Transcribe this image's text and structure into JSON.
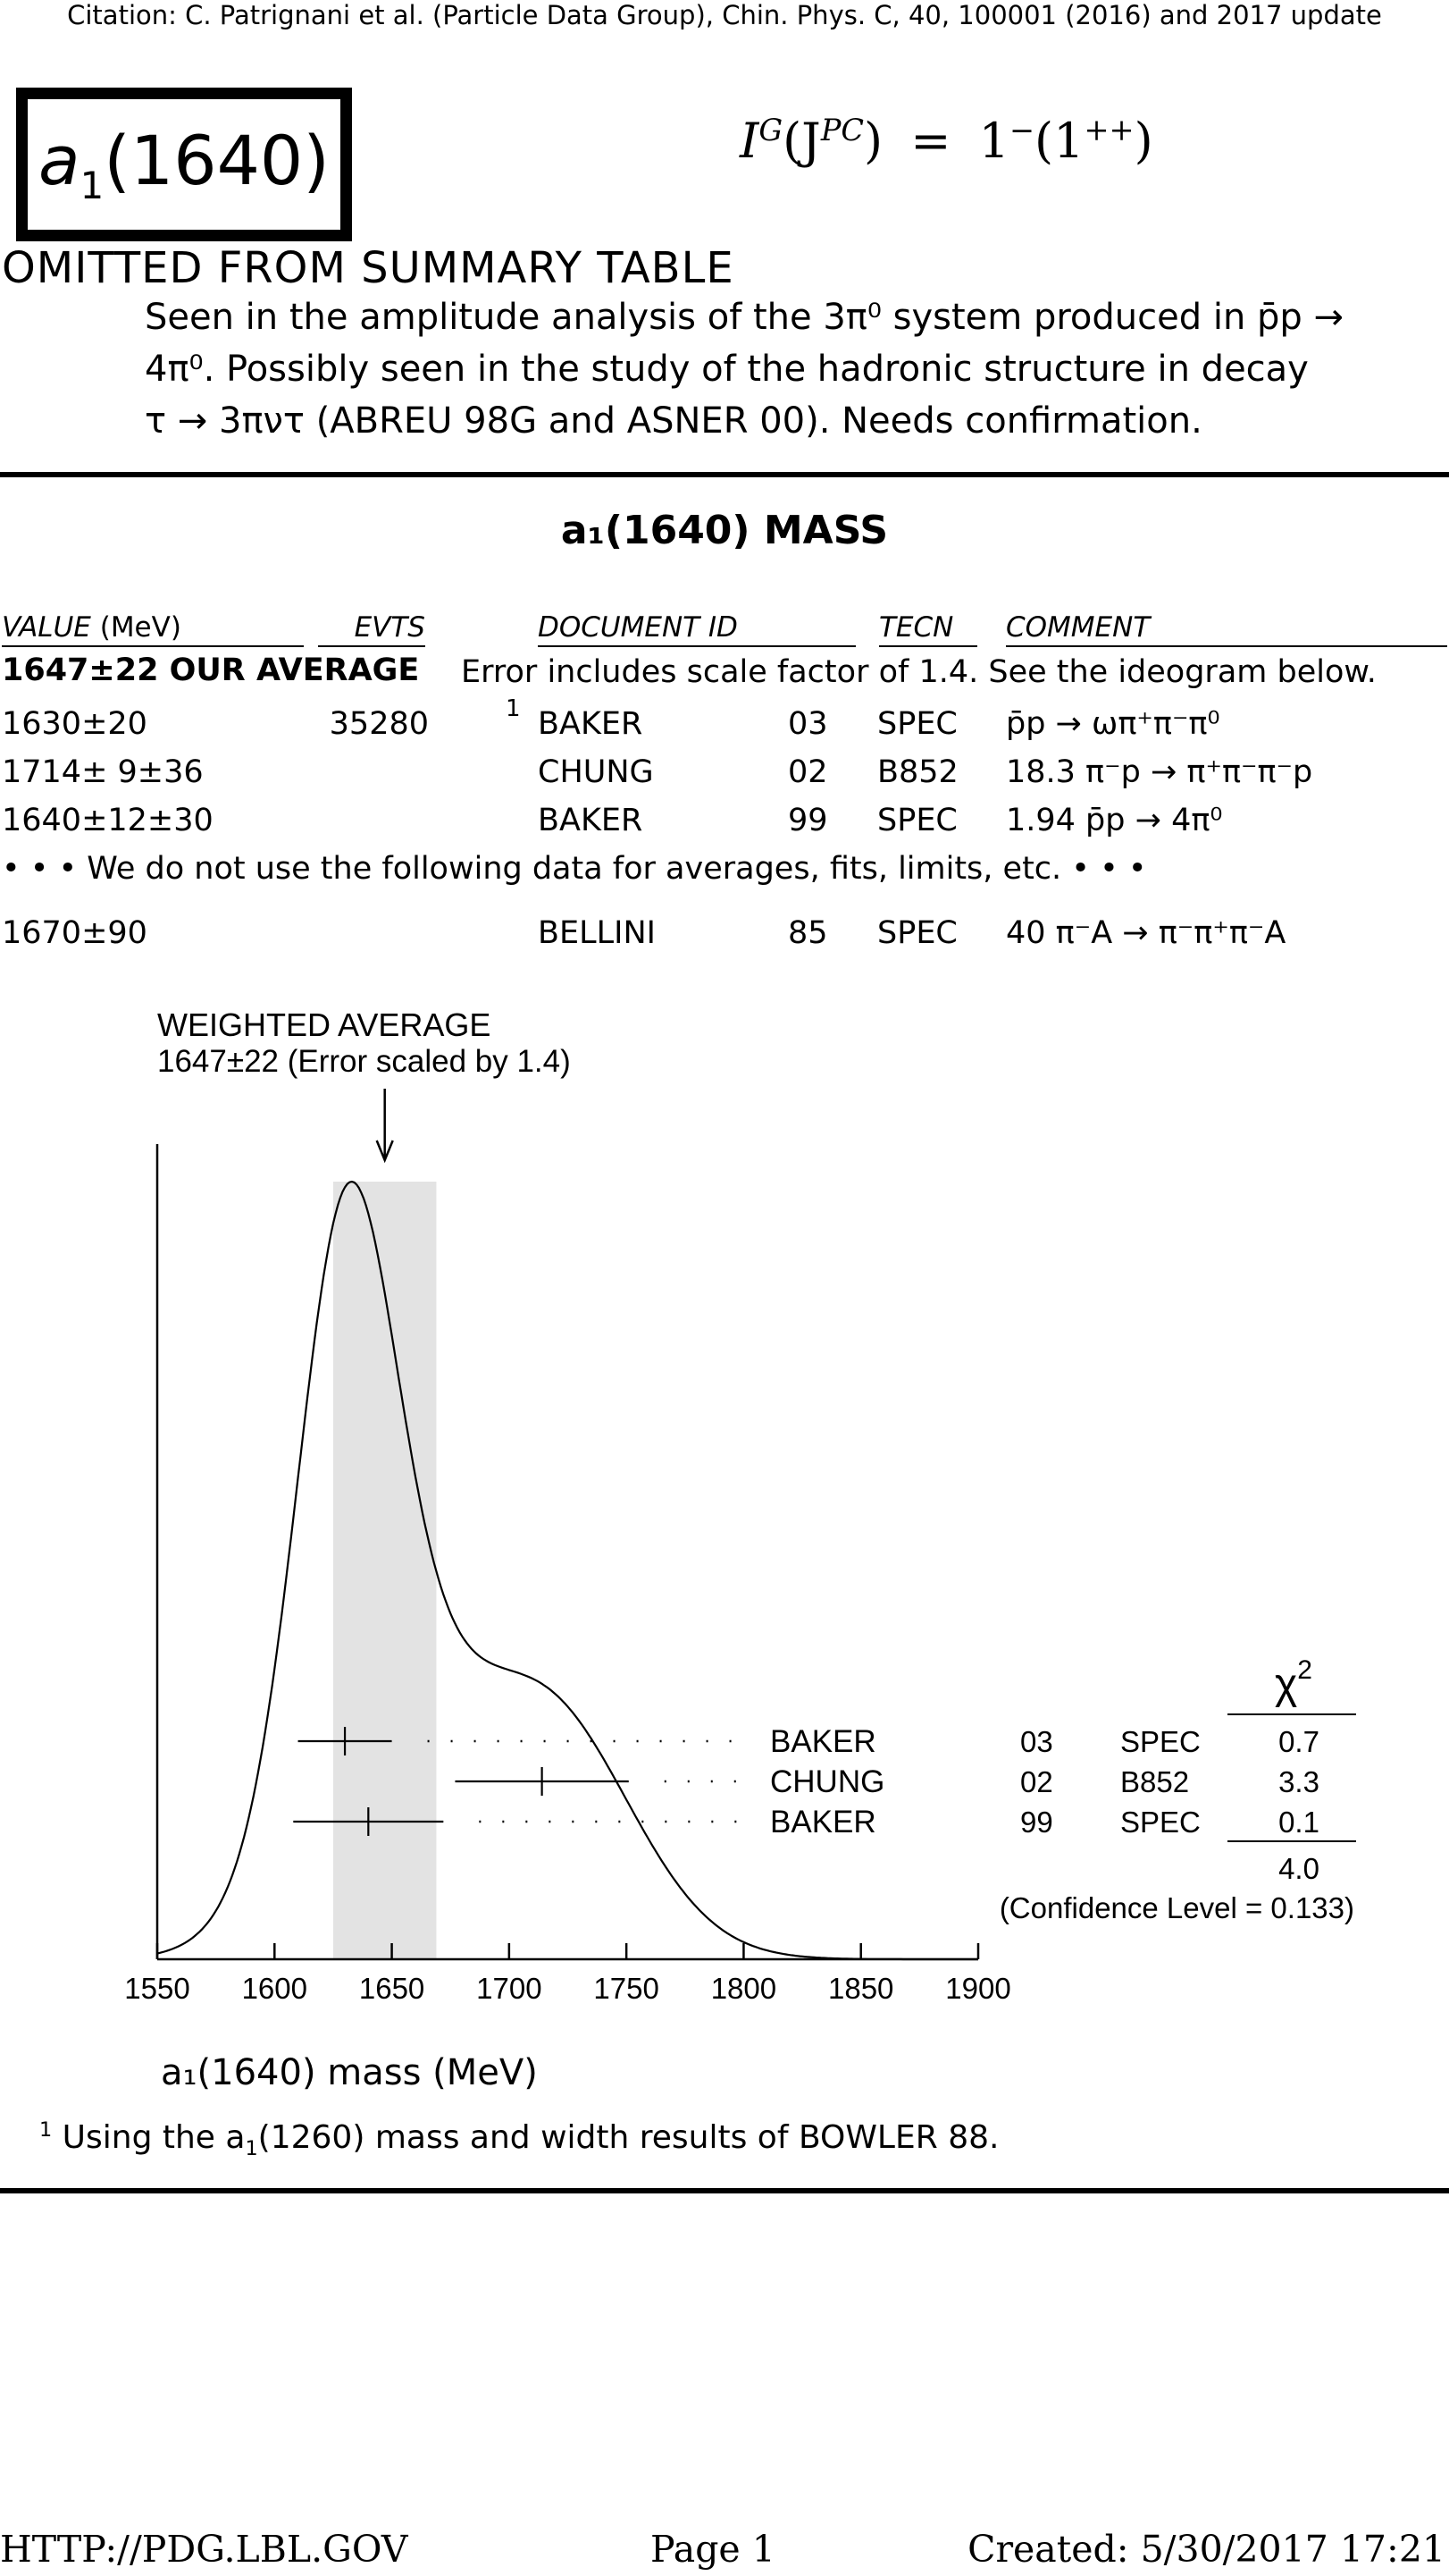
{
  "citation": "Citation: C. Patrignani et al. (Particle Data Group), Chin. Phys. C, 40, 100001 (2016) and 2017 update",
  "particle": {
    "name": "a",
    "sub": "1",
    "mass_label": "(1640)"
  },
  "quantum_numbers": {
    "lhs_I": "I",
    "lhs_G": "G",
    "lhs_J": "(J",
    "lhs_PC": "PC",
    "lhs_close": ")",
    "equals": "=",
    "rhs": "1",
    "rhs_sup": "−",
    "rhs_paren": "(1",
    "rhs_paren_sup": "++",
    "rhs_close": ")"
  },
  "omitted": "OMITTED FROM SUMMARY TABLE",
  "description": [
    "Seen in the amplitude analysis of the 3π⁰ system produced in p̄p →",
    "4π⁰. Possibly seen in the study of the hadronic structure in decay",
    "τ → 3πντ (ABREU 98G and ASNER 00). Needs confirmation."
  ],
  "section_title": "a₁(1640) MASS",
  "table": {
    "headers": {
      "value": "VALUE",
      "value_unit": "(MeV)",
      "evts": "EVTS",
      "doc": "DOCUMENT ID",
      "tecn": "TECN",
      "comment": "COMMENT"
    },
    "average": {
      "value": "1647±22 OUR AVERAGE",
      "note": "Error includes scale factor of 1.4. See the ideogram below."
    },
    "rows": [
      {
        "value": "1630±20",
        "evts": "35280",
        "footnote": "1",
        "doc": "BAKER",
        "year": "03",
        "tecn": "SPEC",
        "comment": "p̄p → ωπ⁺π⁻π⁰"
      },
      {
        "value": "1714± 9±36",
        "evts": "",
        "footnote": "",
        "doc": "CHUNG",
        "year": "02",
        "tecn": "B852",
        "comment": "18.3 π⁻p → π⁺π⁻π⁻p"
      },
      {
        "value": "1640±12±30",
        "evts": "",
        "footnote": "",
        "doc": "BAKER",
        "year": "99",
        "tecn": "SPEC",
        "comment": "1.94 p̄p → 4π⁰"
      }
    ],
    "not_used_note": "• • • We do not use the following data for averages, fits, limits, etc. • • •",
    "unused_rows": [
      {
        "value": "1670±90",
        "doc": "BELLINI",
        "year": "85",
        "tecn": "SPEC",
        "comment": "40 π⁻A → π⁻π⁺π⁻A"
      }
    ]
  },
  "chart_data": {
    "type": "ideogram",
    "title": "WEIGHTED AVERAGE",
    "subtitle": "1647±22 (Error scaled by 1.4)",
    "xlabel": "a₁(1640) mass (MeV)",
    "xlim": [
      1550,
      1900
    ],
    "x_ticks": [
      1550,
      1600,
      1650,
      1700,
      1750,
      1800,
      1850,
      1900
    ],
    "average": {
      "value": 1647,
      "error": 22,
      "scale_factor": 1.4
    },
    "measurements": [
      {
        "label": "BAKER",
        "year": "03",
        "tecn": "SPEC",
        "value": 1630,
        "error": 20,
        "chi2": "0.7"
      },
      {
        "label": "CHUNG",
        "year": "02",
        "tecn": "B852",
        "value": 1714,
        "error": 37,
        "chi2": "3.3"
      },
      {
        "label": "BAKER",
        "year": "99",
        "tecn": "SPEC",
        "value": 1640,
        "error": 32,
        "chi2": "0.1"
      }
    ],
    "chi2_header": "χ",
    "chi2_header_sup": "2",
    "chi2_total": "4.0",
    "confidence_level": "(Confidence Level = 0.133)"
  },
  "footnote": {
    "mark": "1",
    "text_pre": "Using the a",
    "text_sub": "1",
    "text_post": "(1260) mass and width results of BOWLER 88."
  },
  "footer": {
    "left": "HTTP://PDG.LBL.GOV",
    "center": "Page 1",
    "right": "Created: 5/30/2017 17:21"
  }
}
